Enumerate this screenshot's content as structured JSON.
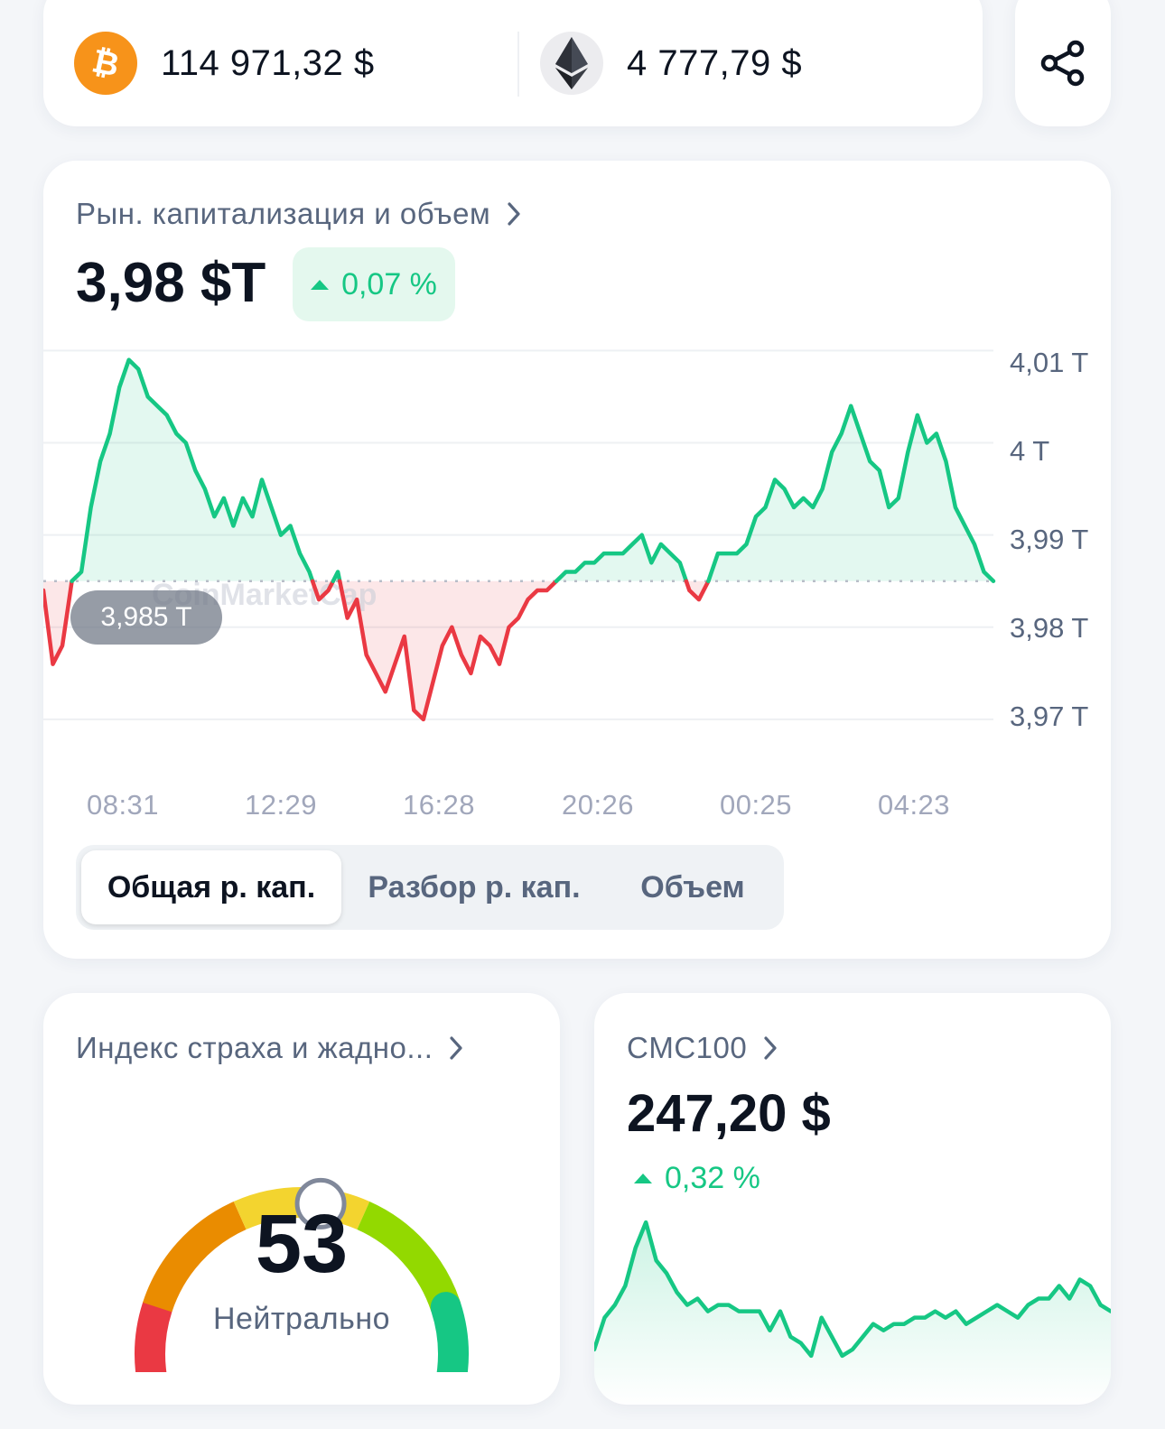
{
  "ticker": {
    "btc": {
      "icon": "bitcoin-icon",
      "price": "114 971,32 $",
      "color": "#f7931a"
    },
    "eth": {
      "icon": "ethereum-icon",
      "price": "4 777,79 $"
    },
    "share_icon": "share-icon"
  },
  "market_cap": {
    "title": "Рын. капитализация и объем",
    "value": "3,98 $T",
    "change": "0,07 %",
    "reference_label": "3,985 T",
    "watermark": "CoinMarketCap",
    "y_labels": [
      "4,01 T",
      "4 T",
      "3,99 T",
      "3,98 T",
      "3,97 T"
    ],
    "x_labels": [
      "08:31",
      "12:29",
      "16:28",
      "20:26",
      "00:25",
      "04:23"
    ],
    "tabs": [
      {
        "label": "Общая р. кап.",
        "active": true
      },
      {
        "label": "Разбор р. кап.",
        "active": false
      },
      {
        "label": "Объем",
        "active": false
      }
    ],
    "colors": {
      "up": "#16c784",
      "down": "#ea3943"
    }
  },
  "chart_data": [
    {
      "type": "line",
      "title": "Рын. капитализация и объем",
      "unit": "T",
      "ylim": [
        3.965,
        4.012
      ],
      "baseline": 3.985,
      "yticks": [
        4.01,
        4.0,
        3.99,
        3.98,
        3.97
      ],
      "xticks": [
        "08:31",
        "12:29",
        "16:28",
        "20:26",
        "00:25",
        "04:23"
      ],
      "x": [
        0,
        0.01,
        0.02,
        0.03,
        0.04,
        0.05,
        0.06,
        0.07,
        0.08,
        0.09,
        0.1,
        0.11,
        0.12,
        0.13,
        0.14,
        0.15,
        0.16,
        0.17,
        0.18,
        0.19,
        0.2,
        0.21,
        0.22,
        0.23,
        0.24,
        0.25,
        0.26,
        0.27,
        0.28,
        0.29,
        0.3,
        0.31,
        0.32,
        0.33,
        0.34,
        0.35,
        0.36,
        0.37,
        0.38,
        0.39,
        0.4,
        0.41,
        0.42,
        0.43,
        0.44,
        0.45,
        0.46,
        0.47,
        0.48,
        0.49,
        0.5,
        0.51,
        0.52,
        0.53,
        0.54,
        0.55,
        0.56,
        0.57,
        0.58,
        0.59,
        0.6,
        0.61,
        0.62,
        0.63,
        0.64,
        0.65,
        0.66,
        0.67,
        0.68,
        0.69,
        0.7,
        0.71,
        0.72,
        0.73,
        0.74,
        0.75,
        0.76,
        0.77,
        0.78,
        0.79,
        0.8,
        0.81,
        0.82,
        0.83,
        0.84,
        0.85,
        0.86,
        0.87,
        0.88,
        0.89,
        0.9,
        0.91,
        0.92,
        0.93,
        0.94,
        0.95,
        0.96,
        0.97,
        0.98,
        0.99,
        1.0
      ],
      "values": [
        3.984,
        3.976,
        3.978,
        3.985,
        3.986,
        3.993,
        3.998,
        4.001,
        4.006,
        4.009,
        4.008,
        4.005,
        4.004,
        4.003,
        4.001,
        4.0,
        3.997,
        3.995,
        3.992,
        3.994,
        3.991,
        3.994,
        3.992,
        3.996,
        3.993,
        3.99,
        3.991,
        3.988,
        3.986,
        3.983,
        3.984,
        3.986,
        3.981,
        3.983,
        3.977,
        3.975,
        3.973,
        3.976,
        3.979,
        3.971,
        3.97,
        3.974,
        3.978,
        3.98,
        3.977,
        3.975,
        3.979,
        3.978,
        3.976,
        3.98,
        3.981,
        3.983,
        3.984,
        3.984,
        3.985,
        3.986,
        3.986,
        3.987,
        3.987,
        3.988,
        3.988,
        3.988,
        3.989,
        3.99,
        3.987,
        3.989,
        3.988,
        3.987,
        3.984,
        3.983,
        3.985,
        3.988,
        3.988,
        3.988,
        3.989,
        3.992,
        3.993,
        3.996,
        3.995,
        3.993,
        3.994,
        3.993,
        3.995,
        3.999,
        4.001,
        4.004,
        4.001,
        3.998,
        3.997,
        3.993,
        3.994,
        3.999,
        4.003,
        4.0,
        4.001,
        3.998,
        3.993,
        3.991,
        3.989,
        3.986,
        3.985
      ]
    },
    {
      "type": "gauge",
      "title": "Индекс страха и жадности",
      "value": 53,
      "range": [
        0,
        100
      ],
      "label": "Нейтрально"
    },
    {
      "type": "line",
      "title": "CMC100",
      "x": [
        0,
        0.02,
        0.04,
        0.06,
        0.08,
        0.1,
        0.12,
        0.14,
        0.16,
        0.18,
        0.2,
        0.22,
        0.24,
        0.26,
        0.28,
        0.3,
        0.32,
        0.34,
        0.36,
        0.38,
        0.4,
        0.42,
        0.44,
        0.46,
        0.48,
        0.5,
        0.52,
        0.54,
        0.56,
        0.58,
        0.6,
        0.62,
        0.64,
        0.66,
        0.68,
        0.7,
        0.72,
        0.74,
        0.76,
        0.78,
        0.8,
        0.82,
        0.84,
        0.86,
        0.88,
        0.9,
        0.92,
        0.94,
        0.96,
        0.98,
        1.0
      ],
      "values": [
        246.6,
        247.1,
        247.3,
        247.6,
        248.2,
        248.6,
        248.0,
        247.8,
        247.5,
        247.3,
        247.4,
        247.2,
        247.3,
        247.3,
        247.2,
        247.2,
        247.2,
        246.9,
        247.2,
        246.8,
        246.7,
        246.5,
        247.1,
        246.8,
        246.5,
        246.6,
        246.8,
        247.0,
        246.9,
        247.0,
        247.0,
        247.1,
        247.1,
        247.2,
        247.1,
        247.2,
        247.0,
        247.1,
        247.2,
        247.3,
        247.2,
        247.1,
        247.3,
        247.4,
        247.4,
        247.6,
        247.4,
        247.7,
        247.6,
        247.3,
        247.2
      ]
    }
  ],
  "fear_greed": {
    "title": "Индекс страха и жадно...",
    "value": "53",
    "label": "Нейтрально",
    "value_fraction": 0.53,
    "colors": [
      "#ea3943",
      "#ea8c00",
      "#f3d42f",
      "#93d900",
      "#16c784"
    ]
  },
  "cmc100": {
    "title": "CMC100",
    "value": "247,20 $",
    "change": "0,32 %"
  }
}
